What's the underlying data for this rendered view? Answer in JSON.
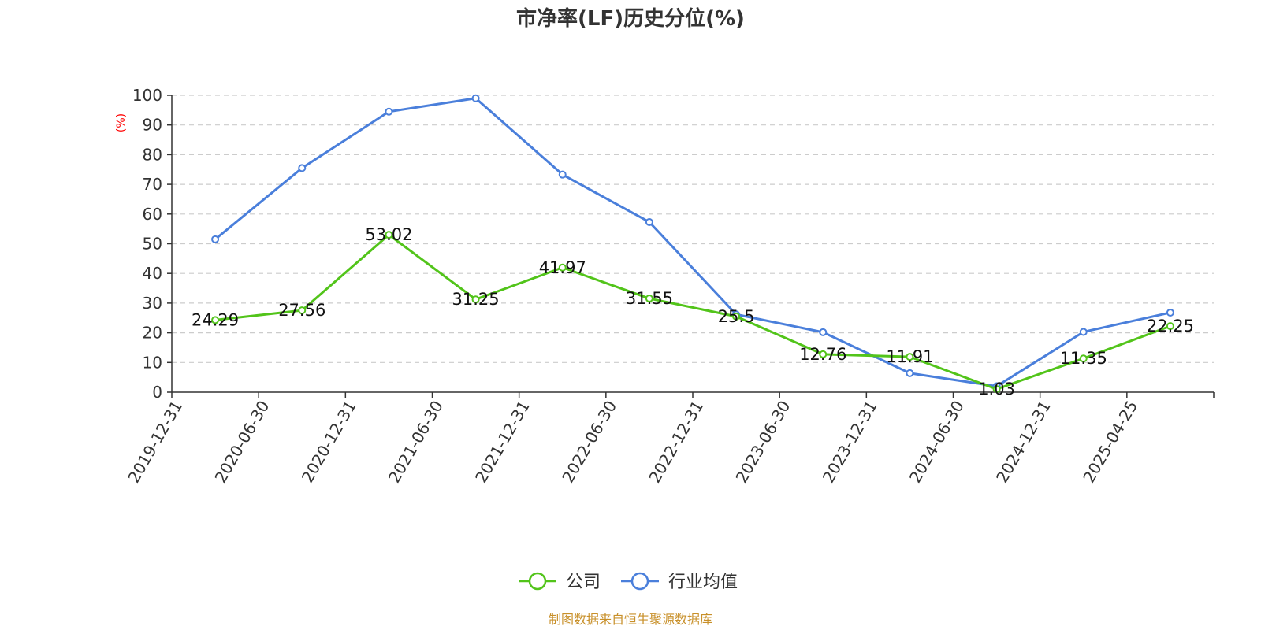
{
  "chart_data": {
    "type": "line",
    "title": "市净率(LF)历史分位(%)",
    "ylabel": "(%)",
    "ylabel_color": "#ff0000",
    "ylim": [
      0,
      100
    ],
    "yticks": [
      "0",
      "10",
      "20",
      "30",
      "40",
      "50",
      "60",
      "70",
      "80",
      "90",
      "100"
    ],
    "grid": true,
    "legend_position": "bottom-center",
    "categories": [
      "2019-12-31",
      "2020-06-30",
      "2020-12-31",
      "2021-06-30",
      "2021-12-31",
      "2022-06-30",
      "2022-12-31",
      "2023-06-30",
      "2023-12-31",
      "2024-06-30",
      "2024-12-31",
      "2025-04-25"
    ],
    "series": [
      {
        "name": "公司",
        "color": "#52c41a",
        "values": [
          24.29,
          27.56,
          53.02,
          31.25,
          41.97,
          31.55,
          25.5,
          12.76,
          11.91,
          1.03,
          11.35,
          22.25
        ],
        "labels": [
          "24.29",
          "27.56",
          "53.02",
          "31.25",
          "41.97",
          "31.55",
          "25.5",
          "12.76",
          "11.91",
          "1.03",
          "11.35",
          "22.25"
        ]
      },
      {
        "name": "行业均值",
        "color": "#4a7fdb",
        "values": [
          51.5,
          75.5,
          94.5,
          99,
          73.3,
          57.3,
          26.2,
          20.2,
          6.4,
          2.0,
          20.3,
          26.8
        ]
      }
    ],
    "source": "制图数据来自恒生聚源数据库",
    "source_color": "#c8902a"
  }
}
